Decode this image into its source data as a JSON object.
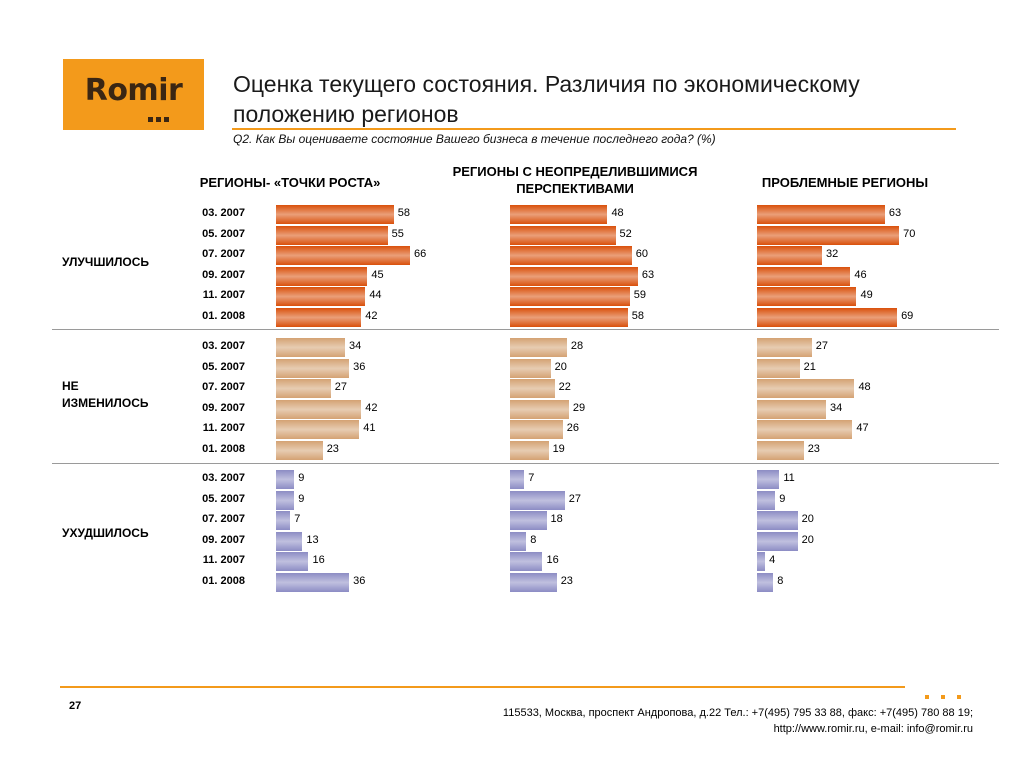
{
  "logo": {
    "text": "Romir"
  },
  "title": "Оценка текущего состояния. Различия по экономическому положению регионов",
  "question": "Q2. Как Вы оцениваете состояние Вашего бизнеса в течение последнего года? (%)",
  "colors": {
    "accent": "#f39a1b",
    "improved": "#d9500b",
    "unchanged": "#d4a273",
    "worsened": "#8c8cc4"
  },
  "chart_data": {
    "type": "bar",
    "orientation": "horizontal",
    "periods": [
      "03. 2007",
      "05. 2007",
      "07. 2007",
      "09. 2007",
      "11. 2007",
      "01. 2008"
    ],
    "columns": [
      "РЕГИОНЫ- «ТОЧКИ РОСТА»",
      "РЕГИОНЫ   С НЕОПРЕДЕЛИВШИМИСЯ ПЕРСПЕКТИВАМИ",
      "ПРОБЛЕМНЫЕ РЕГИОНЫ"
    ],
    "sections": [
      {
        "label": "УЛУЧШИЛОСЬ",
        "values": [
          [
            58,
            55,
            66,
            45,
            44,
            42
          ],
          [
            48,
            52,
            60,
            63,
            59,
            58
          ],
          [
            63,
            70,
            32,
            46,
            49,
            69
          ]
        ]
      },
      {
        "label": "НЕ ИЗМЕНИЛОСЬ",
        "values": [
          [
            34,
            36,
            27,
            42,
            41,
            23
          ],
          [
            28,
            20,
            22,
            29,
            26,
            19
          ],
          [
            27,
            21,
            48,
            34,
            47,
            23
          ]
        ]
      },
      {
        "label": "УХУДШИЛОСЬ",
        "values": [
          [
            9,
            9,
            7,
            13,
            16,
            36
          ],
          [
            7,
            27,
            18,
            8,
            16,
            23
          ],
          [
            11,
            9,
            20,
            20,
            4,
            8
          ]
        ]
      }
    ],
    "xlim": [
      0,
      100
    ]
  },
  "footer": {
    "page_number": "27",
    "address_line1": "115533, Москва, проспект Андропова, д.22   Тел.: +7(495) 795 33 88, факс: +7(495) 780 88 19;",
    "address_line2": "http://www.romir.ru, e-mail: info@romir.ru"
  }
}
